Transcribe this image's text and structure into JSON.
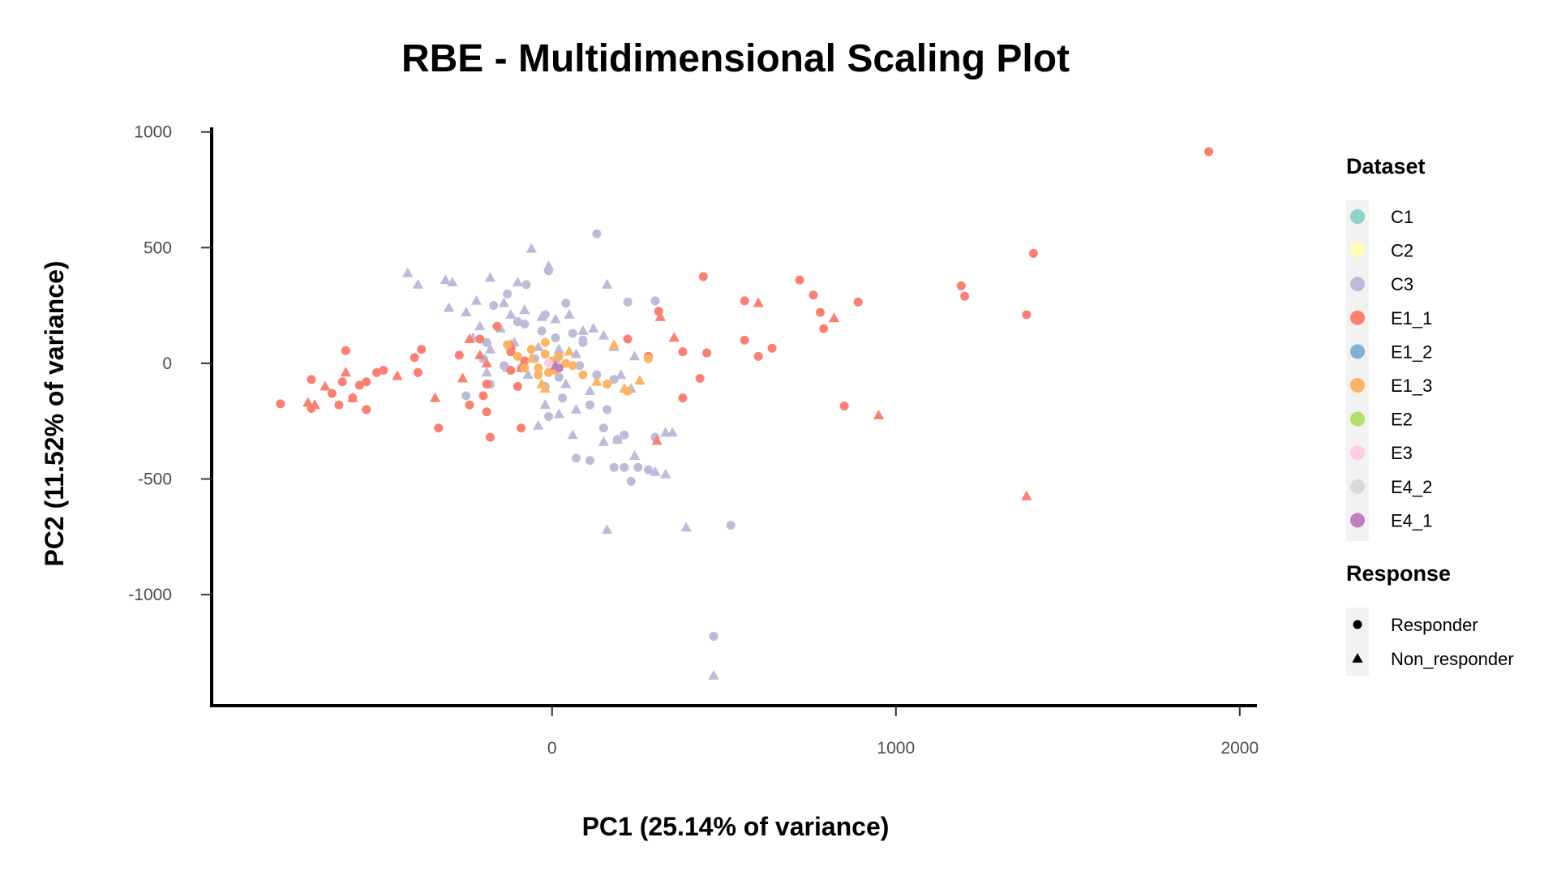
{
  "chart_data": {
    "type": "scatter",
    "title": "RBE - Multidimensional Scaling Plot",
    "xlabel": "PC1 (25.14% of variance)",
    "ylabel": "PC2 (11.52% of variance)",
    "xlim": [
      -990,
      2050
    ],
    "ylim": [
      -1480,
      1020
    ],
    "xticks": [
      0,
      1000,
      2000
    ],
    "yticks": [
      1000,
      500,
      0,
      -500,
      -1000
    ],
    "grid": false,
    "legend_position": "right",
    "legend": {
      "dataset_title": "Dataset",
      "response_title": "Response",
      "datasets": [
        {
          "name": "C1",
          "color": "#8dd3c7"
        },
        {
          "name": "C2",
          "color": "#ffffb3"
        },
        {
          "name": "C3",
          "color": "#bebada"
        },
        {
          "name": "E1_1",
          "color": "#fb8072"
        },
        {
          "name": "E1_2",
          "color": "#80b1d3"
        },
        {
          "name": "E1_3",
          "color": "#fdb462"
        },
        {
          "name": "E2",
          "color": "#b3de69"
        },
        {
          "name": "E3",
          "color": "#fccde5"
        },
        {
          "name": "E4_2",
          "color": "#d9d9d9"
        },
        {
          "name": "E4_1",
          "color": "#bc80bd"
        }
      ],
      "responses": [
        {
          "name": "Responder",
          "shape": "circle"
        },
        {
          "name": "Non_responder",
          "shape": "triangle"
        }
      ]
    },
    "series": [
      {
        "name": "C3",
        "color": "#bebada",
        "responder": [
          [
            130,
            560
          ],
          [
            -10,
            400
          ],
          [
            -75,
            340
          ],
          [
            40,
            260
          ],
          [
            220,
            265
          ],
          [
            300,
            270
          ],
          [
            -130,
            300
          ],
          [
            -20,
            210
          ],
          [
            -80,
            170
          ],
          [
            60,
            130
          ],
          [
            -190,
            90
          ],
          [
            -120,
            60
          ],
          [
            -50,
            20
          ],
          [
            -140,
            -10
          ],
          [
            90,
            100
          ],
          [
            130,
            -50
          ],
          [
            180,
            -70
          ],
          [
            -20,
            -100
          ],
          [
            30,
            -150
          ],
          [
            110,
            -180
          ],
          [
            160,
            -200
          ],
          [
            -10,
            -230
          ],
          [
            150,
            -280
          ],
          [
            210,
            -310
          ],
          [
            190,
            -330
          ],
          [
            300,
            -320
          ],
          [
            250,
            -450
          ],
          [
            280,
            -460
          ],
          [
            210,
            -450
          ],
          [
            230,
            -510
          ],
          [
            70,
            -410
          ],
          [
            110,
            -420
          ],
          [
            -250,
            -140
          ],
          [
            -180,
            -90
          ],
          [
            -90,
            -20
          ],
          [
            20,
            -60
          ],
          [
            80,
            -10
          ],
          [
            90,
            90
          ],
          [
            -30,
            140
          ],
          [
            10,
            110
          ],
          [
            -170,
            250
          ],
          [
            -100,
            180
          ],
          [
            -200,
            20
          ],
          [
            520,
            -700
          ],
          [
            470,
            -1180
          ],
          [
            180,
            -450
          ]
        ],
        "non_responder": [
          [
            -420,
            390
          ],
          [
            -390,
            340
          ],
          [
            -310,
            360
          ],
          [
            -290,
            350
          ],
          [
            -180,
            370
          ],
          [
            -100,
            350
          ],
          [
            -140,
            260
          ],
          [
            -220,
            270
          ],
          [
            -300,
            240
          ],
          [
            -250,
            220
          ],
          [
            -60,
            495
          ],
          [
            -10,
            420
          ],
          [
            160,
            340
          ],
          [
            -30,
            200
          ],
          [
            10,
            190
          ],
          [
            50,
            210
          ],
          [
            -80,
            230
          ],
          [
            -120,
            210
          ],
          [
            120,
            150
          ],
          [
            150,
            120
          ],
          [
            90,
            140
          ],
          [
            -150,
            150
          ],
          [
            -230,
            110
          ],
          [
            -180,
            60
          ],
          [
            -110,
            90
          ],
          [
            -40,
            70
          ],
          [
            20,
            60
          ],
          [
            70,
            40
          ],
          [
            180,
            70
          ],
          [
            240,
            30
          ],
          [
            200,
            -50
          ],
          [
            230,
            -110
          ],
          [
            110,
            -120
          ],
          [
            40,
            -90
          ],
          [
            -70,
            -50
          ],
          [
            -130,
            -20
          ],
          [
            -190,
            -40
          ],
          [
            70,
            -200
          ],
          [
            20,
            -220
          ],
          [
            -40,
            -270
          ],
          [
            60,
            -310
          ],
          [
            150,
            -340
          ],
          [
            190,
            -330
          ],
          [
            240,
            -400
          ],
          [
            330,
            -300
          ],
          [
            350,
            -300
          ],
          [
            330,
            -480
          ],
          [
            160,
            -720
          ],
          [
            390,
            -710
          ],
          [
            470,
            -1350
          ],
          [
            -20,
            -180
          ],
          [
            10,
            20
          ],
          [
            -210,
            160
          ],
          [
            300,
            -470
          ]
        ]
      },
      {
        "name": "E1_1",
        "color": "#fb8072",
        "responder": [
          [
            1910,
            915
          ],
          [
            1400,
            475
          ],
          [
            1190,
            335
          ],
          [
            1200,
            290
          ],
          [
            1380,
            210
          ],
          [
            440,
            375
          ],
          [
            720,
            360
          ],
          [
            760,
            295
          ],
          [
            560,
            270
          ],
          [
            780,
            220
          ],
          [
            890,
            265
          ],
          [
            790,
            150
          ],
          [
            640,
            65
          ],
          [
            560,
            100
          ],
          [
            600,
            30
          ],
          [
            450,
            45
          ],
          [
            380,
            50
          ],
          [
            310,
            225
          ],
          [
            220,
            105
          ],
          [
            280,
            30
          ],
          [
            430,
            -65
          ],
          [
            380,
            -150
          ],
          [
            850,
            -185
          ],
          [
            -600,
            55
          ],
          [
            -380,
            60
          ],
          [
            -400,
            25
          ],
          [
            -270,
            35
          ],
          [
            -210,
            105
          ],
          [
            -160,
            160
          ],
          [
            -120,
            50
          ],
          [
            -80,
            10
          ],
          [
            -120,
            -30
          ],
          [
            -190,
            -90
          ],
          [
            -200,
            -140
          ],
          [
            -240,
            -180
          ],
          [
            -190,
            -210
          ],
          [
            -90,
            -280
          ],
          [
            -180,
            -320
          ],
          [
            -330,
            -280
          ],
          [
            -390,
            -40
          ],
          [
            -510,
            -40
          ],
          [
            -490,
            -30
          ],
          [
            -540,
            -80
          ],
          [
            -560,
            -95
          ],
          [
            -640,
            -130
          ],
          [
            -610,
            -80
          ],
          [
            -700,
            -70
          ],
          [
            -620,
            -180
          ],
          [
            -790,
            -175
          ],
          [
            -540,
            -200
          ],
          [
            -580,
            -150
          ],
          [
            -700,
            -195
          ],
          [
            -100,
            -100
          ]
        ],
        "non_responder": [
          [
            600,
            260
          ],
          [
            820,
            195
          ],
          [
            315,
            200
          ],
          [
            355,
            110
          ],
          [
            950,
            -225
          ],
          [
            1380,
            -575
          ],
          [
            305,
            -335
          ],
          [
            -210,
            35
          ],
          [
            -240,
            105
          ],
          [
            -260,
            -65
          ],
          [
            -190,
            0
          ],
          [
            -120,
            80
          ],
          [
            -90,
            -20
          ],
          [
            -340,
            -150
          ],
          [
            -450,
            -55
          ],
          [
            -600,
            -40
          ],
          [
            -580,
            -150
          ],
          [
            -690,
            -180
          ],
          [
            -710,
            -170
          ],
          [
            -660,
            -100
          ]
        ]
      },
      {
        "name": "E1_3",
        "color": "#fdb462",
        "responder": [
          [
            -100,
            30
          ],
          [
            -60,
            60
          ],
          [
            -20,
            40
          ],
          [
            20,
            30
          ],
          [
            60,
            -10
          ],
          [
            -40,
            -50
          ],
          [
            -80,
            -20
          ],
          [
            10,
            -30
          ],
          [
            90,
            -50
          ],
          [
            160,
            -90
          ],
          [
            220,
            -120
          ],
          [
            280,
            20
          ],
          [
            -130,
            80
          ],
          [
            -20,
            90
          ],
          [
            -40,
            -20
          ],
          [
            40,
            0
          ],
          [
            0,
            10
          ],
          [
            -10,
            -40
          ]
        ],
        "non_responder": [
          [
            180,
            80
          ],
          [
            255,
            -75
          ],
          [
            210,
            -110
          ],
          [
            130,
            -80
          ],
          [
            -30,
            -90
          ],
          [
            -60,
            20
          ],
          [
            50,
            50
          ],
          [
            -20,
            -110
          ]
        ]
      },
      {
        "name": "E4_1",
        "color": "#bc80bd",
        "responder": [
          [
            20,
            -20
          ]
        ],
        "non_responder": [
          [
            10,
            -10
          ]
        ]
      },
      {
        "name": "E3",
        "color": "#fccde5",
        "responder": [
          [
            -10,
            0
          ]
        ],
        "non_responder": []
      }
    ]
  }
}
